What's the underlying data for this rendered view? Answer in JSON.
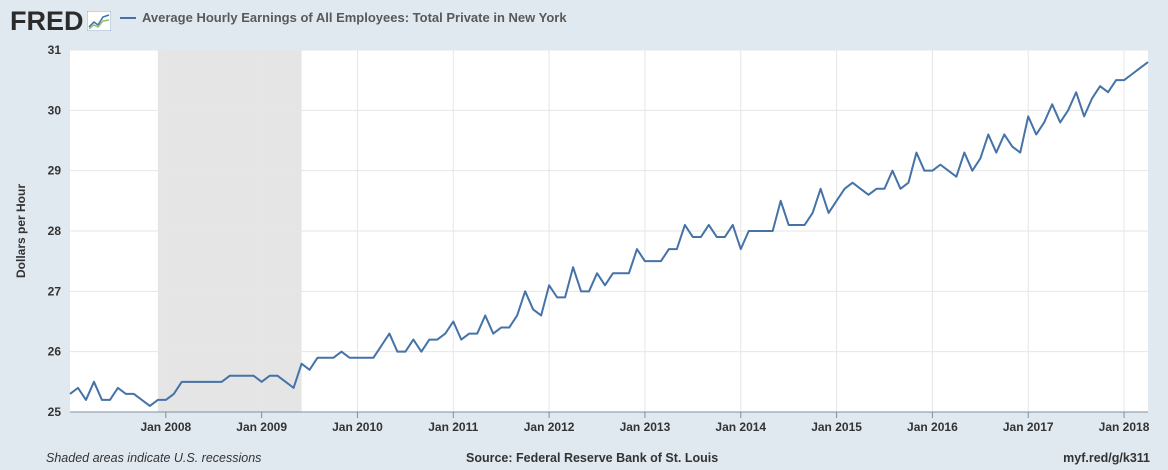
{
  "header": {
    "logo_text": "FRED",
    "legend_label": "Average Hourly Earnings of All Employees: Total Private in New York",
    "series_color": "#4572a7"
  },
  "footer": {
    "note": "Shaded areas indicate U.S. recessions",
    "source": "Source: Federal Reserve Bank of St. Louis",
    "link": "myf.red/g/k311"
  },
  "chart_data": {
    "type": "line",
    "ylabel": "Dollars per Hour",
    "xlabel": "",
    "ylim": [
      25,
      31
    ],
    "x_range": [
      "2007-01",
      "2018-04"
    ],
    "y_ticks": [
      25,
      26,
      27,
      28,
      29,
      30,
      31
    ],
    "x_ticks": [
      {
        "label": "Jan 2008",
        "date": "2008-01"
      },
      {
        "label": "Jan 2009",
        "date": "2009-01"
      },
      {
        "label": "Jan 2010",
        "date": "2010-01"
      },
      {
        "label": "Jan 2011",
        "date": "2011-01"
      },
      {
        "label": "Jan 2012",
        "date": "2012-01"
      },
      {
        "label": "Jan 2013",
        "date": "2013-01"
      },
      {
        "label": "Jan 2014",
        "date": "2014-01"
      },
      {
        "label": "Jan 2015",
        "date": "2015-01"
      },
      {
        "label": "Jan 2016",
        "date": "2016-01"
      },
      {
        "label": "Jan 2017",
        "date": "2017-01"
      },
      {
        "label": "Jan 2018",
        "date": "2018-01"
      }
    ],
    "recessions": [
      {
        "start": "2007-12",
        "end": "2009-06"
      }
    ],
    "grid": true,
    "series": [
      {
        "start": "2007-01",
        "frequency": "monthly",
        "color": "#4572a7",
        "values": [
          25.3,
          25.4,
          25.2,
          25.5,
          25.2,
          25.2,
          25.4,
          25.3,
          25.3,
          25.2,
          25.1,
          25.2,
          25.2,
          25.3,
          25.5,
          25.5,
          25.5,
          25.5,
          25.5,
          25.5,
          25.6,
          25.6,
          25.6,
          25.6,
          25.5,
          25.6,
          25.6,
          25.5,
          25.4,
          25.8,
          25.7,
          25.9,
          25.9,
          25.9,
          26.0,
          25.9,
          25.9,
          25.9,
          25.9,
          26.1,
          26.3,
          26.0,
          26.0,
          26.2,
          26.0,
          26.2,
          26.2,
          26.3,
          26.5,
          26.2,
          26.3,
          26.3,
          26.6,
          26.3,
          26.4,
          26.4,
          26.6,
          27.0,
          26.7,
          26.6,
          27.1,
          26.9,
          26.9,
          27.4,
          27.0,
          27.0,
          27.3,
          27.1,
          27.3,
          27.3,
          27.3,
          27.7,
          27.5,
          27.5,
          27.5,
          27.7,
          27.7,
          28.1,
          27.9,
          27.9,
          28.1,
          27.9,
          27.9,
          28.1,
          27.7,
          28.0,
          28.0,
          28.0,
          28.0,
          28.5,
          28.1,
          28.1,
          28.1,
          28.3,
          28.7,
          28.3,
          28.5,
          28.7,
          28.8,
          28.7,
          28.6,
          28.7,
          28.7,
          29.0,
          28.7,
          28.8,
          29.3,
          29.0,
          29.0,
          29.1,
          29.0,
          28.9,
          29.3,
          29.0,
          29.2,
          29.6,
          29.3,
          29.6,
          29.4,
          29.3,
          29.9,
          29.6,
          29.8,
          30.1,
          29.8,
          30.0,
          30.3,
          29.9,
          30.2,
          30.4,
          30.3,
          30.5,
          30.5,
          30.6,
          30.7,
          30.8
        ]
      }
    ]
  }
}
